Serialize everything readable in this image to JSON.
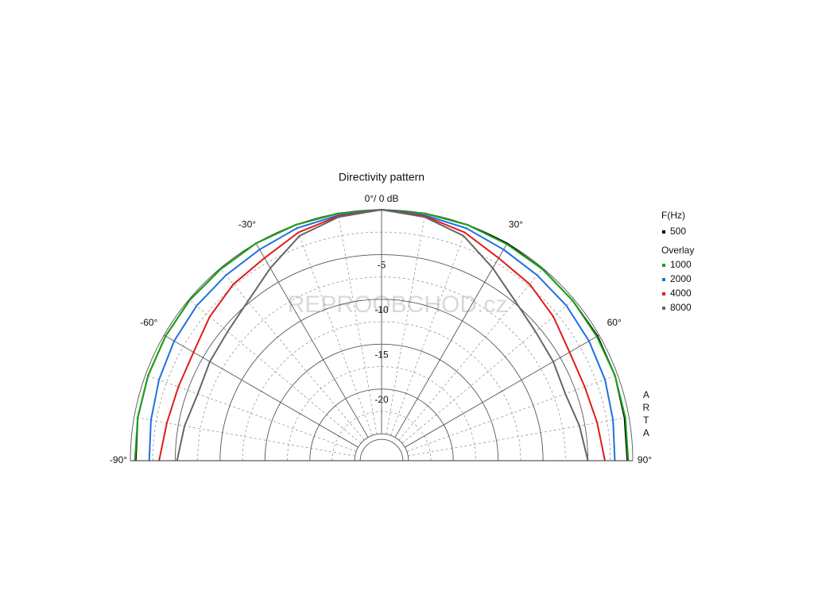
{
  "chart_data": {
    "type": "polar",
    "title": "Directivity pattern",
    "zero_label": "0°/ 0 dB",
    "x": [
      -90,
      -80,
      -70,
      -60,
      -50,
      -40,
      -30,
      -20,
      -10,
      0,
      10,
      20,
      30,
      40,
      50,
      60,
      70,
      80,
      90
    ],
    "series": [
      {
        "name": "500",
        "color": "#000000",
        "values": [
          -0.6,
          -0.4,
          -0.3,
          -0.2,
          -0.1,
          -0.1,
          0,
          0,
          0,
          0,
          0,
          0,
          0,
          -0.1,
          -0.2,
          -0.2,
          -0.3,
          -0.5,
          -0.6
        ]
      },
      {
        "name": "1000",
        "color": "#1aa51a",
        "values": [
          -0.5,
          -0.4,
          -0.3,
          -0.2,
          -0.1,
          -0.1,
          0,
          0,
          0,
          0,
          0,
          0,
          -0.1,
          -0.1,
          -0.2,
          -0.3,
          -0.3,
          -0.4,
          -0.5
        ]
      },
      {
        "name": "2000",
        "color": "#1f6fe0",
        "values": [
          -2.1,
          -1.9,
          -1.6,
          -1.3,
          -1.1,
          -1.0,
          -0.8,
          -0.4,
          -0.2,
          0,
          -0.2,
          -0.4,
          -0.8,
          -1.0,
          -1.1,
          -1.3,
          -1.5,
          -1.8,
          -2.0
        ]
      },
      {
        "name": "4000",
        "color": "#e01b1b",
        "values": [
          -3.2,
          -3.7,
          -3.9,
          -3.8,
          -3.0,
          -2.3,
          -1.9,
          -0.9,
          -0.3,
          0,
          -0.3,
          -0.9,
          -1.9,
          -2.3,
          -3.0,
          -3.8,
          -3.9,
          -3.6,
          -3.1
        ]
      },
      {
        "name": "8000",
        "color": "#666666",
        "values": [
          -5.2,
          -5.7,
          -6.2,
          -5.9,
          -5.6,
          -4.8,
          -3.2,
          -1.3,
          -0.4,
          0,
          -0.4,
          -1.3,
          -3.2,
          -4.8,
          -5.6,
          -5.9,
          -6.2,
          -5.6,
          -5.0
        ]
      }
    ],
    "rlim": [
      -28,
      0
    ],
    "rticks": [
      -5,
      -10,
      -15,
      -20,
      -25
    ],
    "thetalim": [
      -90,
      90
    ],
    "thetaticks": [
      {
        "value": -90,
        "label": "-90°"
      },
      {
        "value": -60,
        "label": "-60°"
      },
      {
        "value": -30,
        "label": "-30°"
      },
      {
        "value": 30,
        "label": "30°"
      },
      {
        "value": 60,
        "label": "60°"
      },
      {
        "value": 90,
        "label": "90°"
      }
    ],
    "legend_title": "F(Hz)",
    "overlay_label": "Overlay",
    "side_text": "ARTA",
    "watermark": "REPROOBCHOD.cz"
  }
}
